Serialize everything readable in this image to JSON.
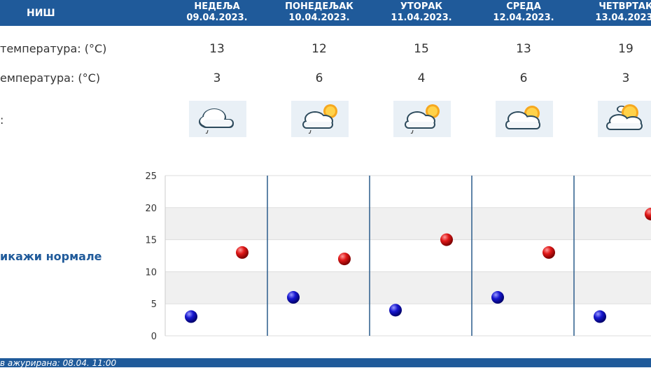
{
  "header": {
    "city": "НИШ",
    "days": [
      {
        "name": "НЕДЕЉА",
        "date": "09.04.2023."
      },
      {
        "name": "ПОНЕДЕЉАК",
        "date": "10.04.2023."
      },
      {
        "name": "УТОРАК",
        "date": "11.04.2023."
      },
      {
        "name": "СРЕДА",
        "date": "12.04.2023."
      },
      {
        "name": "ЧЕТВРТАК",
        "date": "13.04.2023."
      }
    ]
  },
  "rows": {
    "max_label": "температура: (°C)",
    "min_label": "емпература: (°C)",
    "icon_label": ":"
  },
  "icons": [
    "cloud-rain-icon",
    "partly-sunny-rain-icon",
    "partly-sunny-rain-icon",
    "partly-sunny-icon",
    "sun-cloud-icon"
  ],
  "legend": {
    "normals_label": "икажи нормале"
  },
  "chart_data": {
    "type": "scatter",
    "categories": [
      "09.04.2023.",
      "10.04.2023.",
      "11.04.2023.",
      "12.04.2023.",
      "13.04.2023."
    ],
    "series": [
      {
        "values": [
          13,
          12,
          15,
          13,
          19
        ],
        "color": "#d01010"
      },
      {
        "values": [
          3,
          6,
          4,
          6,
          3
        ],
        "color": "#1010c0"
      }
    ],
    "ylim": [
      0,
      25
    ],
    "yticks": [
      "0",
      "5",
      "10",
      "15",
      "20",
      "25"
    ],
    "grid": true
  },
  "footer": {
    "updated": "в ажурирана:  08.04. 11:00"
  },
  "colors": {
    "header_bg": "#1f5a9a",
    "max": "#d01010",
    "min": "#1010c0"
  }
}
